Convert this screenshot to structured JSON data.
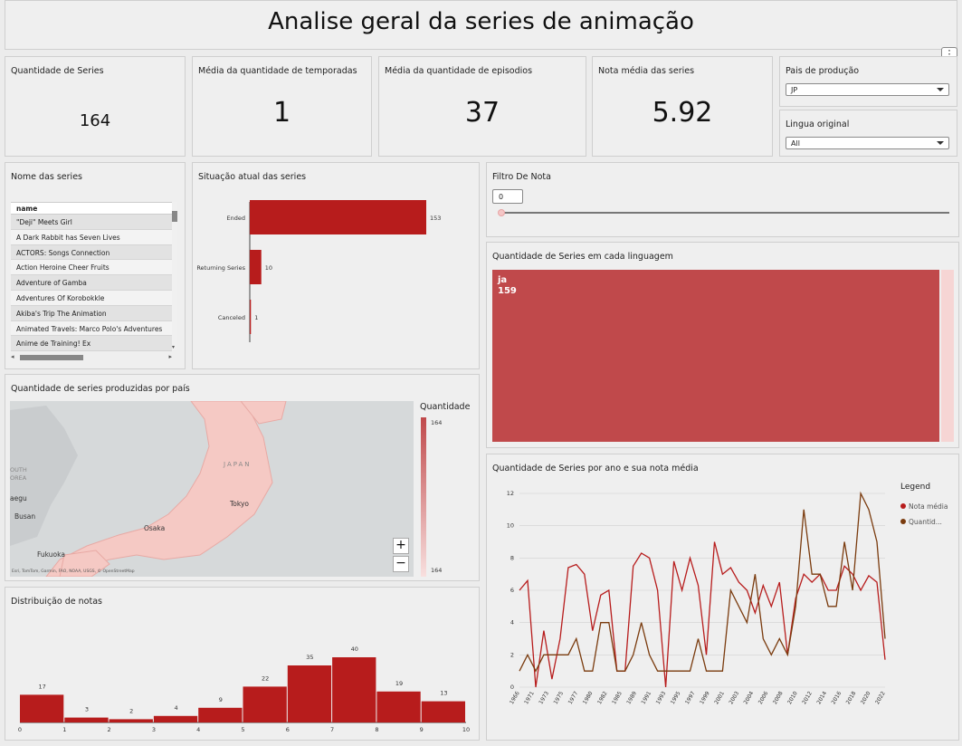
{
  "header": {
    "title": "Analise geral da series de animação"
  },
  "kpis": {
    "series_count": {
      "label": "Quantidade de Series",
      "value": "164"
    },
    "avg_seasons": {
      "label": "Média da quantidade de temporadas",
      "value": "1"
    },
    "avg_episodes": {
      "label": "Média da quantidade de episodios",
      "value": "37"
    },
    "avg_rating": {
      "label": "Nota média das series",
      "value": "5.92"
    }
  },
  "filters": {
    "country": {
      "label": "Pais de produção",
      "value": "JP"
    },
    "language": {
      "label": "Lingua original",
      "value": "All"
    },
    "rating": {
      "label": "Filtro De Nota",
      "value": "0"
    }
  },
  "series_list": {
    "title": "Nome das series",
    "column": "name",
    "rows": [
      "\"Deji\" Meets Girl",
      "A Dark Rabbit has Seven Lives",
      "ACTORS: Songs Connection",
      "Action Heroine Cheer Fruits",
      "Adventure of Gamba",
      "Adventures Of Korobokkle",
      "Akiba's Trip The Animation",
      "Animated Travels: Marco Polo's Adventures",
      "Anime de Training! Ex"
    ]
  },
  "status_chart": {
    "title": "Situação atual das series",
    "chart_data": {
      "type": "bar",
      "orientation": "horizontal",
      "categories": [
        "Ended",
        "Returning Series",
        "Canceled"
      ],
      "values": [
        153,
        10,
        1
      ],
      "value_labels": [
        "153",
        "10",
        "1"
      ]
    }
  },
  "language_treemap": {
    "title": "Quantidade de Series em cada linguagem",
    "chart_data": {
      "type": "treemap",
      "items": [
        {
          "name": "ja",
          "value": 159,
          "value_label": "159"
        },
        {
          "name": "",
          "value": 5
        }
      ]
    }
  },
  "map": {
    "title": "Quantidade de series produzidas por país",
    "legend_title": "Quantidade",
    "legend_max": "164",
    "legend_min": "164",
    "labels": [
      "JAPAN",
      "Tokyo",
      "Osaka",
      "Fukuoka",
      "Busan",
      "aegu",
      "OUTH",
      "OREA"
    ],
    "attribution": "Esri, TomTom, Garmin, FAO, NOAA, USGS, © OpenStreetMap",
    "zoom_in": "+",
    "zoom_out": "−"
  },
  "histogram": {
    "title": "Distribuição de notas",
    "chart_data": {
      "type": "bar",
      "bins": [
        [
          0,
          1
        ],
        [
          1,
          2
        ],
        [
          2,
          3
        ],
        [
          3,
          4
        ],
        [
          4,
          5
        ],
        [
          5,
          6
        ],
        [
          6,
          7
        ],
        [
          7,
          8
        ],
        [
          8,
          9
        ],
        [
          9,
          10
        ]
      ],
      "values": [
        17,
        3,
        2,
        4,
        9,
        22,
        35,
        40,
        19,
        13
      ],
      "x_ticks": [
        "0",
        "1",
        "2",
        "3",
        "4",
        "5",
        "6",
        "7",
        "8",
        "9",
        "10"
      ]
    }
  },
  "line_chart": {
    "title": "Quantidade de Series por ano e sua nota média",
    "legend_title": "Legend",
    "chart_data": {
      "type": "line",
      "x": [
        1966,
        1968,
        1969,
        1971,
        1972,
        1973,
        1974,
        1975,
        1976,
        1977,
        1978,
        1979,
        1980,
        1981,
        1982,
        1983,
        1984,
        1985,
        1986,
        1987,
        1988,
        1989,
        1990,
        1991,
        1992,
        1993,
        1994,
        1995,
        1996,
        1997,
        1998,
        1999,
        2000,
        2001,
        2002,
        2003,
        2004,
        2005,
        2006,
        2007,
        2008,
        2009,
        2010,
        2011,
        2012,
        2013,
        2014,
        2015,
        2016,
        2017,
        2018,
        2019,
        2020,
        2021,
        2022
      ],
      "x_ticks": [
        "1966",
        "1971",
        "1973",
        "1975",
        "1977",
        "1980",
        "1982",
        "1985",
        "1989",
        "1991",
        "1993",
        "1995",
        "1997",
        "1999",
        "2001",
        "2003",
        "2004",
        "2006",
        "2008",
        "2010",
        "2012",
        "2014",
        "2016",
        "2018",
        "2020",
        "2022"
      ],
      "ylim": [
        0,
        12
      ],
      "y_ticks": [
        "0",
        "2",
        "4",
        "6",
        "8",
        "10",
        "12"
      ],
      "series": [
        {
          "name": "Nota média",
          "color": "#b71c1c",
          "values": [
            6,
            6.6,
            0,
            3.5,
            0.5,
            3,
            7.4,
            7.6,
            7,
            3.5,
            5.7,
            6,
            1,
            1,
            7.5,
            8.3,
            8,
            6,
            0,
            7.8,
            6,
            8,
            6.3,
            2,
            9,
            7,
            7.4,
            6.5,
            6,
            4.6,
            6.3,
            5,
            6.5,
            2,
            5.5,
            7,
            6.5,
            7,
            6,
            6,
            7.5,
            7,
            6,
            6.9,
            6.5,
            1.7,
            null,
            null,
            null,
            null,
            null,
            null,
            null,
            null,
            null
          ]
        },
        {
          "name": "Quantid...",
          "color": "#7a3b0e",
          "values": [
            1,
            2,
            1,
            2,
            2,
            2,
            2,
            3,
            1,
            1,
            4,
            4,
            1,
            1,
            2,
            4,
            2,
            1,
            1,
            1,
            1,
            1,
            3,
            1,
            1,
            1,
            6,
            5,
            4,
            7,
            3,
            2,
            3,
            2,
            5,
            11,
            7,
            7,
            5,
            5,
            9,
            6,
            12,
            11,
            9,
            3,
            null,
            null,
            null,
            null,
            null,
            null,
            null,
            null,
            null
          ]
        }
      ]
    }
  },
  "colors": {
    "bar": "#b71c1c",
    "treemap": "#c0494b",
    "map_land": "#f5c9c4",
    "map_sea": "#d6d9da"
  }
}
